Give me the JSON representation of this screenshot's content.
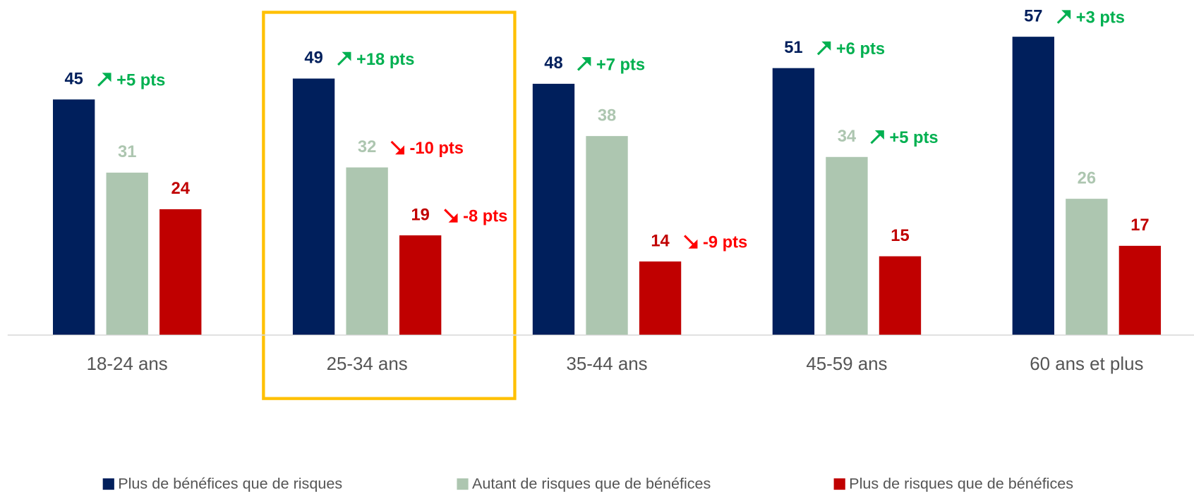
{
  "chart_data": {
    "type": "bar",
    "categories": [
      "18-24 ans",
      "25-34 ans",
      "35-44 ans",
      "45-59 ans",
      "60 ans et plus"
    ],
    "series": [
      {
        "name": "Plus de bénéfices que de risques",
        "color": "#001f5c",
        "values": [
          45,
          49,
          48,
          51,
          57
        ],
        "changes": [
          "+5 pts",
          "+18 pts",
          "+7 pts",
          "+6 pts",
          "+3 pts"
        ]
      },
      {
        "name": "Autant de risques que de bénéfices",
        "color": "#adc6b0",
        "values": [
          31,
          32,
          38,
          34,
          26
        ],
        "changes": [
          null,
          "-10 pts",
          null,
          "+5 pts",
          null
        ]
      },
      {
        "name": "Plus de risques que de bénéfices",
        "color": "#c00000",
        "values": [
          24,
          19,
          14,
          15,
          17
        ],
        "changes": [
          null,
          "-8 pts",
          "-9 pts",
          null,
          null
        ]
      }
    ],
    "ylim": [
      0,
      64
    ],
    "legend": "bottom"
  }
}
